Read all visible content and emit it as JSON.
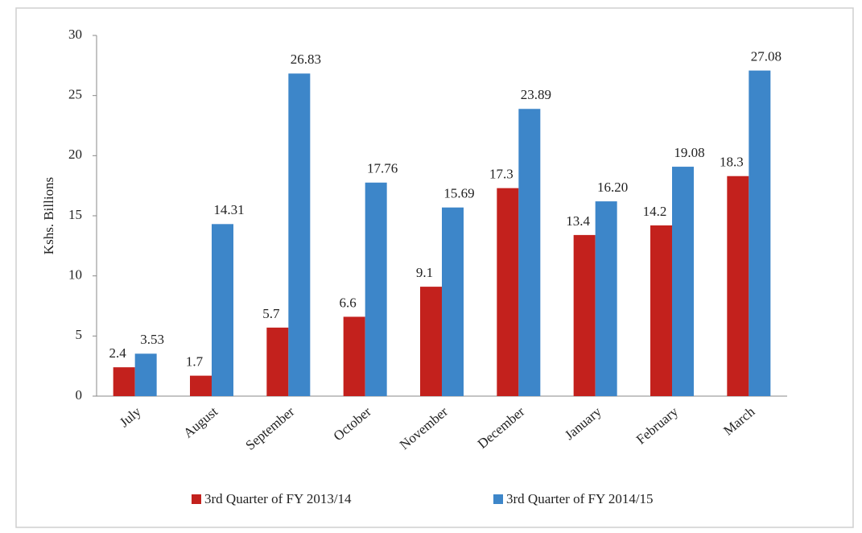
{
  "chart_data": {
    "type": "bar",
    "y_label": "Kshs. Billions",
    "categories": [
      "July",
      "August",
      "September",
      "October",
      "November",
      "December",
      "January",
      "February",
      "March"
    ],
    "series": [
      {
        "name": "3rd Quarter of FY 2013/14",
        "color": "#c3211d",
        "values": [
          2.4,
          1.7,
          5.7,
          6.6,
          9.1,
          17.3,
          13.4,
          14.2,
          18.3
        ]
      },
      {
        "name": "3rd Quarter of FY 2014/15",
        "color": "#3d86c9",
        "values": [
          3.53,
          14.31,
          26.83,
          17.76,
          15.69,
          23.89,
          16.2,
          19.08,
          27.08
        ],
        "value_labels": [
          "3.53",
          "14.31",
          "26.83",
          "17.76",
          "15.69",
          "23.89",
          "16.20",
          "19.08",
          "27.08"
        ]
      }
    ],
    "ylim": [
      0,
      30
    ],
    "yticks": [
      0,
      5,
      10,
      15,
      20,
      25,
      30
    ],
    "grid": false,
    "legend": "bottom"
  }
}
